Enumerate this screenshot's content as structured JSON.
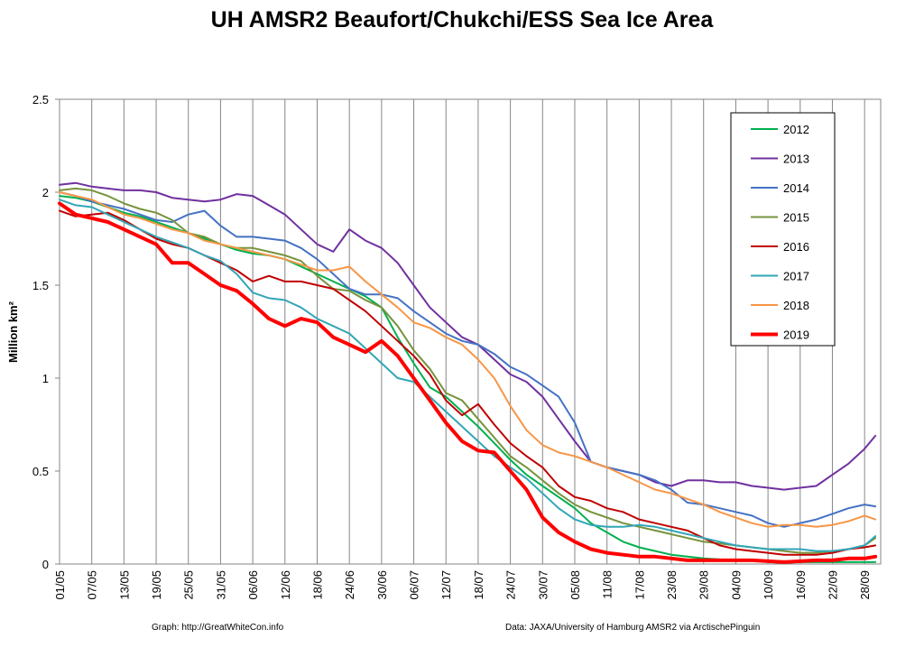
{
  "chart_data": {
    "type": "line",
    "title": "UH AMSR2 Beaufort/Chukchi/ESS Sea Ice Area",
    "ylabel": "Million km²",
    "xlabel": "",
    "ylim": [
      0,
      2.5
    ],
    "yticks": [
      0,
      0.5,
      1,
      1.5,
      2,
      2.5
    ],
    "ytick_labels": [
      "0",
      "0.5",
      "1",
      "1.5",
      "2",
      "2.5"
    ],
    "x_start": "01/05",
    "x_end": "01/10",
    "xtick_labels": [
      "01/05",
      "07/05",
      "13/05",
      "19/05",
      "25/05",
      "31/05",
      "06/06",
      "12/06",
      "18/06",
      "24/06",
      "30/06",
      "06/07",
      "12/07",
      "18/07",
      "24/07",
      "30/07",
      "05/08",
      "11/08",
      "17/08",
      "23/08",
      "29/08",
      "04/09",
      "10/09",
      "16/09",
      "22/09",
      "28/09"
    ],
    "grid": "vertical",
    "legend_position": "top-right",
    "x": [
      "01/05",
      "04/05",
      "07/05",
      "10/05",
      "13/05",
      "16/05",
      "19/05",
      "22/05",
      "25/05",
      "28/05",
      "31/05",
      "03/06",
      "06/06",
      "09/06",
      "12/06",
      "15/06",
      "18/06",
      "21/06",
      "24/06",
      "27/06",
      "30/06",
      "03/07",
      "06/07",
      "09/07",
      "12/07",
      "15/07",
      "18/07",
      "21/07",
      "24/07",
      "27/07",
      "30/07",
      "02/08",
      "05/08",
      "08/08",
      "11/08",
      "14/08",
      "17/08",
      "20/08",
      "23/08",
      "26/08",
      "29/08",
      "01/09",
      "04/09",
      "07/09",
      "10/09",
      "13/09",
      "16/09",
      "19/09",
      "22/09",
      "25/09",
      "28/09",
      "30/09"
    ],
    "series": [
      {
        "name": "2012",
        "color": "#00b050",
        "width": 2,
        "values": [
          1.98,
          1.97,
          1.95,
          1.92,
          1.89,
          1.87,
          1.84,
          1.81,
          1.78,
          1.75,
          1.72,
          1.69,
          1.67,
          1.66,
          1.64,
          1.6,
          1.56,
          1.52,
          1.48,
          1.44,
          1.38,
          1.22,
          1.08,
          0.95,
          0.9,
          0.82,
          0.74,
          0.65,
          0.56,
          0.48,
          0.42,
          0.36,
          0.3,
          0.22,
          0.17,
          0.12,
          0.09,
          0.07,
          0.05,
          0.04,
          0.03,
          0.025,
          0.02,
          0.02,
          0.015,
          0.015,
          0.01,
          0.01,
          0.01,
          0.01,
          0.01,
          0.01
        ]
      },
      {
        "name": "2013",
        "color": "#7030a0",
        "width": 2,
        "values": [
          2.04,
          2.05,
          2.03,
          2.02,
          2.01,
          2.01,
          2.0,
          1.97,
          1.96,
          1.95,
          1.96,
          1.99,
          1.98,
          1.93,
          1.88,
          1.8,
          1.72,
          1.68,
          1.8,
          1.74,
          1.7,
          1.62,
          1.5,
          1.38,
          1.3,
          1.22,
          1.18,
          1.1,
          1.02,
          0.98,
          0.9,
          0.78,
          0.66,
          0.55,
          0.52,
          0.5,
          0.48,
          0.44,
          0.42,
          0.45,
          0.45,
          0.44,
          0.44,
          0.42,
          0.41,
          0.4,
          0.41,
          0.42,
          0.48,
          0.54,
          0.62,
          0.69
        ]
      },
      {
        "name": "2014",
        "color": "#4472c4",
        "width": 2,
        "values": [
          2.0,
          1.98,
          1.95,
          1.93,
          1.91,
          1.88,
          1.85,
          1.84,
          1.88,
          1.9,
          1.82,
          1.76,
          1.76,
          1.75,
          1.74,
          1.7,
          1.64,
          1.56,
          1.48,
          1.45,
          1.45,
          1.43,
          1.36,
          1.3,
          1.24,
          1.2,
          1.18,
          1.13,
          1.06,
          1.02,
          0.96,
          0.9,
          0.76,
          0.55,
          0.52,
          0.5,
          0.48,
          0.45,
          0.4,
          0.33,
          0.32,
          0.3,
          0.28,
          0.26,
          0.22,
          0.2,
          0.22,
          0.24,
          0.27,
          0.3,
          0.32,
          0.31
        ]
      },
      {
        "name": "2015",
        "color": "#77933c",
        "width": 2,
        "values": [
          2.01,
          2.02,
          2.01,
          1.98,
          1.94,
          1.91,
          1.89,
          1.85,
          1.78,
          1.76,
          1.72,
          1.7,
          1.7,
          1.68,
          1.66,
          1.63,
          1.55,
          1.48,
          1.47,
          1.42,
          1.38,
          1.28,
          1.15,
          1.05,
          0.92,
          0.88,
          0.78,
          0.68,
          0.58,
          0.52,
          0.45,
          0.38,
          0.32,
          0.28,
          0.25,
          0.22,
          0.2,
          0.18,
          0.16,
          0.14,
          0.12,
          0.11,
          0.1,
          0.09,
          0.08,
          0.07,
          0.06,
          0.06,
          0.07,
          0.08,
          0.1,
          0.14
        ]
      },
      {
        "name": "2016",
        "color": "#c00000",
        "width": 2,
        "values": [
          1.9,
          1.87,
          1.88,
          1.89,
          1.85,
          1.8,
          1.75,
          1.72,
          1.7,
          1.66,
          1.62,
          1.58,
          1.52,
          1.55,
          1.52,
          1.52,
          1.5,
          1.48,
          1.42,
          1.36,
          1.28,
          1.2,
          1.12,
          1.02,
          0.88,
          0.8,
          0.86,
          0.75,
          0.65,
          0.58,
          0.52,
          0.42,
          0.36,
          0.34,
          0.3,
          0.28,
          0.24,
          0.22,
          0.2,
          0.18,
          0.14,
          0.1,
          0.08,
          0.07,
          0.06,
          0.05,
          0.05,
          0.05,
          0.06,
          0.08,
          0.09,
          0.1
        ]
      },
      {
        "name": "2017",
        "color": "#31a6b6",
        "width": 2,
        "values": [
          1.96,
          1.93,
          1.92,
          1.88,
          1.84,
          1.8,
          1.76,
          1.73,
          1.7,
          1.66,
          1.63,
          1.56,
          1.46,
          1.43,
          1.42,
          1.38,
          1.32,
          1.28,
          1.24,
          1.16,
          1.08,
          1.0,
          0.98,
          0.9,
          0.82,
          0.74,
          0.66,
          0.58,
          0.52,
          0.46,
          0.38,
          0.3,
          0.24,
          0.21,
          0.2,
          0.2,
          0.21,
          0.2,
          0.18,
          0.16,
          0.14,
          0.12,
          0.1,
          0.09,
          0.08,
          0.08,
          0.08,
          0.07,
          0.07,
          0.08,
          0.1,
          0.15
        ]
      },
      {
        "name": "2018",
        "color": "#f79646",
        "width": 2,
        "values": [
          2.0,
          1.98,
          1.96,
          1.92,
          1.88,
          1.86,
          1.83,
          1.8,
          1.78,
          1.74,
          1.72,
          1.7,
          1.68,
          1.66,
          1.64,
          1.61,
          1.58,
          1.58,
          1.6,
          1.52,
          1.45,
          1.38,
          1.3,
          1.27,
          1.22,
          1.18,
          1.1,
          1.0,
          0.85,
          0.72,
          0.64,
          0.6,
          0.58,
          0.55,
          0.52,
          0.48,
          0.44,
          0.4,
          0.38,
          0.35,
          0.32,
          0.28,
          0.25,
          0.22,
          0.2,
          0.21,
          0.21,
          0.2,
          0.21,
          0.23,
          0.26,
          0.24
        ]
      },
      {
        "name": "2019",
        "color": "#ff0000",
        "width": 4,
        "values": [
          1.94,
          1.88,
          1.86,
          1.84,
          1.8,
          1.76,
          1.72,
          1.62,
          1.62,
          1.56,
          1.5,
          1.47,
          1.4,
          1.32,
          1.28,
          1.32,
          1.3,
          1.22,
          1.18,
          1.14,
          1.2,
          1.12,
          1.0,
          0.88,
          0.76,
          0.66,
          0.61,
          0.6,
          0.5,
          0.4,
          0.25,
          0.17,
          0.12,
          0.08,
          0.06,
          0.05,
          0.04,
          0.04,
          0.03,
          0.02,
          0.02,
          0.02,
          0.02,
          0.02,
          0.015,
          0.01,
          0.015,
          0.02,
          0.02,
          0.03,
          0.03,
          0.04
        ]
      }
    ],
    "footer_left": "Graph: http://GreatWhiteCon.info",
    "footer_right": "Data:  JAXA/University of Hamburg AMSR2  via  ArctischePinguin"
  }
}
